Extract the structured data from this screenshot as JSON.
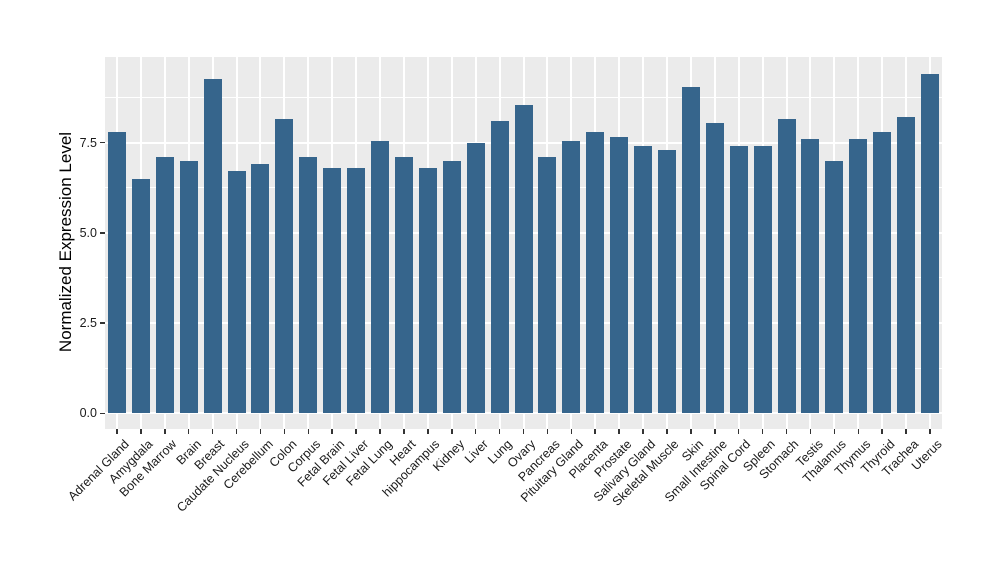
{
  "chart_data": {
    "type": "bar",
    "title": "",
    "xlabel": "",
    "ylabel": "Normalized Expression Level",
    "categories": [
      "Adrenal Gland",
      "Amygdala",
      "Bone Marrow",
      "Brain",
      "Breast",
      "Caudate Nucleus",
      "Cerebellum",
      "Colon",
      "Corpus",
      "Fetal Brain",
      "Fetal Liver",
      "Fetal Lung",
      "Heart",
      "hippocampus",
      "Kidney",
      "Liver",
      "Lung",
      "Ovary",
      "Pancreas",
      "Pituitary Gland",
      "Placenta",
      "Prostate",
      "Salivary Gland",
      "Skeletal Muscle",
      "Skin",
      "Small Intestine",
      "Spinal Cord",
      "Spleen",
      "Stomach",
      "Testis",
      "Thalamus",
      "Thymus",
      "Thyroid",
      "Trachea",
      "Uterus"
    ],
    "values": [
      7.8,
      6.5,
      7.1,
      7.0,
      9.25,
      6.7,
      6.9,
      8.15,
      7.1,
      6.8,
      6.8,
      7.55,
      7.1,
      6.8,
      7.0,
      7.5,
      8.1,
      8.55,
      7.1,
      7.55,
      7.8,
      7.65,
      7.4,
      7.3,
      9.05,
      8.05,
      7.4,
      7.4,
      8.15,
      7.6,
      7.0,
      7.6,
      7.8,
      8.2,
      9.4
    ],
    "yticks": [
      0.0,
      2.5,
      5.0,
      7.5
    ],
    "ytick_labels": [
      "0.0",
      "2.5",
      "5.0",
      "7.5"
    ],
    "yticks_minor": [
      1.25,
      3.75,
      6.25,
      8.75
    ],
    "ylim": [
      -0.47,
      9.87
    ],
    "grid": "on",
    "legend_position": "none",
    "bar_color": "#36658C",
    "panel_background": "#EBEBEB",
    "gridline_color": "#FFFFFF",
    "tick_color": "#333333",
    "text_color": "#1a1a1a"
  }
}
